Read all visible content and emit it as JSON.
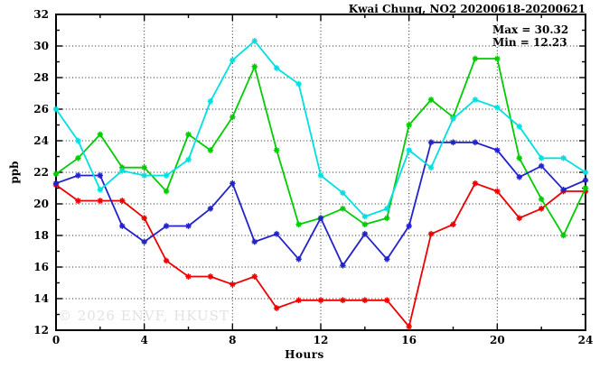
{
  "title": "Kwai Chung, NO2 20200618-20200621",
  "annotations": {
    "max_label": "Max = 30.32",
    "min_label": "Min = 12.23"
  },
  "watermark": "© 2026 ENVF, HKUST",
  "chart_data": {
    "type": "line",
    "title": "Kwai Chung, NO2 20200618-20200621",
    "xlabel": "Hours",
    "ylabel": "ppb",
    "xlim": [
      0,
      24
    ],
    "ylim": [
      12,
      32
    ],
    "x_major_ticks": [
      0,
      4,
      8,
      12,
      16,
      20,
      24
    ],
    "x_minor_ticks": [
      2,
      6,
      10,
      14,
      18,
      22
    ],
    "y_major_ticks": [
      12,
      14,
      16,
      18,
      20,
      22,
      24,
      26,
      28,
      30,
      32
    ],
    "y_minor_ticks": [
      13,
      15,
      17,
      19,
      21,
      23,
      25,
      27,
      29,
      31
    ],
    "grid": true,
    "legend": "none",
    "max_value": 30.32,
    "min_value": 12.23,
    "x": [
      0,
      1,
      2,
      3,
      4,
      5,
      6,
      7,
      8,
      9,
      10,
      11,
      12,
      13,
      14,
      15,
      16,
      17,
      18,
      19,
      20,
      21,
      22,
      23,
      24
    ],
    "series": [
      {
        "name": "series-red",
        "color": "#ee0000",
        "values": [
          21.2,
          20.2,
          20.2,
          20.2,
          19.1,
          16.4,
          15.4,
          15.4,
          14.9,
          15.4,
          13.4,
          13.9,
          13.9,
          13.9,
          13.9,
          13.9,
          12.23,
          18.1,
          18.7,
          21.3,
          20.8,
          19.1,
          19.7,
          20.8,
          20.8
        ]
      },
      {
        "name": "series-green",
        "color": "#00cc00",
        "values": [
          21.9,
          22.9,
          24.4,
          22.3,
          22.3,
          20.8,
          24.4,
          23.4,
          25.5,
          28.7,
          23.4,
          18.7,
          19.1,
          19.7,
          18.7,
          19.1,
          25.0,
          26.6,
          25.5,
          29.2,
          29.2,
          22.9,
          20.3,
          18.0,
          21.0
        ]
      },
      {
        "name": "series-blue",
        "color": "#2222cc",
        "values": [
          21.3,
          21.8,
          21.8,
          18.6,
          17.6,
          18.6,
          18.6,
          19.7,
          21.3,
          17.6,
          18.1,
          16.5,
          19.1,
          16.1,
          18.1,
          16.5,
          18.6,
          23.9,
          23.9,
          23.9,
          23.4,
          21.7,
          22.4,
          20.9,
          21.5
        ]
      },
      {
        "name": "series-cyan",
        "color": "#00e0e0",
        "values": [
          26.0,
          24.0,
          20.9,
          22.1,
          21.8,
          21.8,
          22.8,
          26.5,
          29.1,
          30.32,
          28.6,
          27.6,
          21.8,
          20.7,
          19.2,
          19.7,
          23.4,
          22.3,
          25.4,
          26.6,
          26.1,
          24.9,
          22.9,
          22.9,
          22.0
        ]
      }
    ]
  }
}
